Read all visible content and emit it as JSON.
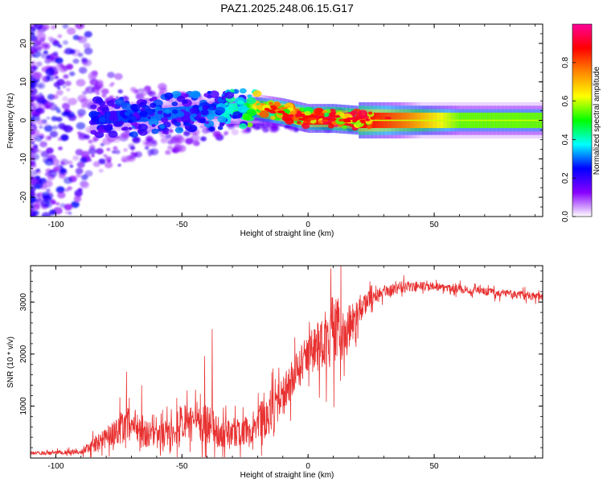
{
  "title": "PAZ1.2025.248.06.15.G17",
  "chart_data": [
    {
      "type": "heatmap",
      "name": "spectrogram",
      "xlabel": "Height of straight line (km)",
      "ylabel": "Frequency (Hz)",
      "xlim": [
        -110,
        93
      ],
      "ylim": [
        -25,
        25
      ],
      "x_ticks": [
        "-100",
        "-50",
        "0",
        "50"
      ],
      "x_tick_values": [
        -100,
        -50,
        0,
        50
      ],
      "y_ticks": [
        "20",
        "10",
        "0",
        "-10",
        "-20"
      ],
      "y_tick_values": [
        20,
        10,
        0,
        -10,
        -20
      ],
      "colorbar": {
        "label": "Normalized spectral amplitude",
        "range": [
          0,
          1
        ],
        "ticks": [
          "0.0",
          "0.2",
          "0.4",
          "0.6",
          "0.8"
        ],
        "tick_values": [
          0.0,
          0.2,
          0.4,
          0.6,
          0.8
        ],
        "colors": [
          "#ffffff",
          "#8800ff",
          "#0000ff",
          "#00ffff",
          "#00ff00",
          "#ffff00",
          "#ff8800",
          "#ff0000",
          "#ff0099"
        ]
      },
      "ridge": {
        "x": [
          -85,
          -60,
          -40,
          -25,
          -20,
          -10,
          0,
          10,
          20,
          40,
          60,
          93
        ],
        "freq": [
          0.5,
          1.5,
          2.5,
          3,
          3,
          2,
          0.5,
          0.5,
          0,
          0,
          0,
          0
        ],
        "amplitude": [
          0.25,
          0.3,
          0.3,
          0.45,
          0.7,
          0.85,
          0.85,
          0.9,
          0.9,
          0.75,
          0.55,
          0.55
        ]
      }
    },
    {
      "type": "line",
      "name": "snr",
      "xlabel": "Height of straight line (km)",
      "ylabel": "SNR (10 * v/v)",
      "xlim": [
        -110,
        93
      ],
      "ylim": [
        0,
        3700
      ],
      "x_ticks": [
        "-100",
        "-50",
        "0",
        "50"
      ],
      "x_tick_values": [
        -100,
        -50,
        0,
        50
      ],
      "y_ticks": [
        "1000",
        "2000",
        "3000"
      ],
      "y_tick_values": [
        1000,
        2000,
        3000
      ],
      "color": "#e83030",
      "x": [
        -110,
        -100,
        -90,
        -85,
        -80,
        -75,
        -70,
        -65,
        -60,
        -55,
        -50,
        -45,
        -40,
        -35,
        -30,
        -25,
        -20,
        -15,
        -10,
        -5,
        0,
        5,
        10,
        15,
        20,
        25,
        30,
        35,
        40,
        50,
        60,
        70,
        80,
        93
      ],
      "y": [
        100,
        100,
        120,
        250,
        400,
        550,
        700,
        500,
        380,
        500,
        700,
        650,
        650,
        500,
        450,
        500,
        700,
        800,
        1200,
        1600,
        2000,
        2200,
        2500,
        2400,
        2800,
        3100,
        3200,
        3250,
        3300,
        3300,
        3250,
        3200,
        3150,
        3100
      ],
      "noise": [
        30,
        40,
        50,
        150,
        200,
        300,
        350,
        300,
        200,
        300,
        350,
        300,
        400,
        300,
        250,
        300,
        350,
        400,
        350,
        400,
        400,
        500,
        700,
        500,
        250,
        150,
        120,
        110,
        110,
        80,
        80,
        80,
        80,
        80
      ],
      "spikes": [
        {
          "x": -72,
          "y": 1660
        },
        {
          "x": -66,
          "y": 1400
        },
        {
          "x": -48,
          "y": 1300
        },
        {
          "x": -41,
          "y": 1960
        },
        {
          "x": -38,
          "y": 2480
        },
        {
          "x": -15,
          "y": 1300
        },
        {
          "x": 9,
          "y": 3650
        },
        {
          "x": 13,
          "y": 3700
        }
      ]
    }
  ]
}
